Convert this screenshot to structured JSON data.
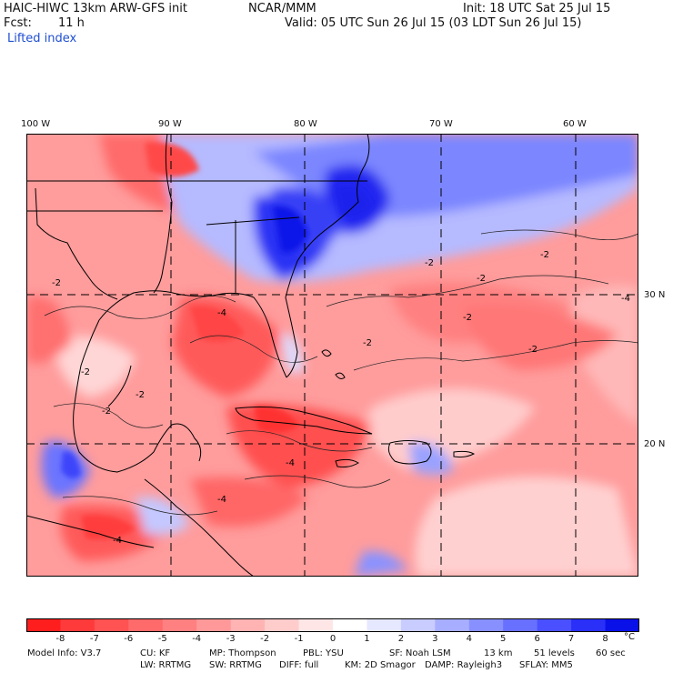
{
  "header": {
    "model": "HAIC-HIWC 13km ARW-GFS init",
    "org": "NCAR/MMM",
    "init": "Init: 18 UTC Sat 25 Jul 15",
    "fcst_label": "Fcst:",
    "fcst_value": "11 h",
    "valid": "Valid: 05 UTC Sun 26 Jul 15 (03 LDT Sun 26 Jul 15)",
    "field": "Lifted index"
  },
  "map": {
    "lon_labels": [
      "100 W",
      "90 W",
      "80 W",
      "70 W",
      "60 W"
    ],
    "lat_labels": [
      "30 N",
      "20 N"
    ],
    "contour_labels": [
      "-2",
      "-2",
      "-2",
      "-2",
      "-4",
      "-2",
      "-4",
      "-2",
      "-4",
      "-2",
      "-4",
      "-2",
      "-4",
      "-2",
      "-2"
    ]
  },
  "colorbar": {
    "labels": [
      "-8",
      "-7",
      "-6",
      "-5",
      "-4",
      "-3",
      "-2",
      "-1",
      "0",
      "1",
      "2",
      "3",
      "4",
      "5",
      "6",
      "7",
      "8"
    ],
    "unit": "°C",
    "colors": [
      "#ff1e1e",
      "#ff3a3a",
      "#ff5252",
      "#ff6a6a",
      "#ff8080",
      "#ff9999",
      "#ffb3b3",
      "#ffcccc",
      "#ffe6e6",
      "#ffffff",
      "#e6e8ff",
      "#c8ccff",
      "#a8aeff",
      "#8890ff",
      "#6870ff",
      "#4a50ff",
      "#2a30f8",
      "#0a10e8"
    ]
  },
  "footer": {
    "line1": [
      "Model Info: V3.7",
      "CU: KF",
      "MP: Thompson",
      "PBL: YSU",
      "SF: Noah LSM",
      "13 km",
      "51 levels",
      "60 sec"
    ],
    "line2": [
      "LW: RRTMG",
      "SW: RRTMG",
      "DIFF: full",
      "KM: 2D Smagor",
      "DAMP: Rayleigh3",
      "SFLAY: MM5"
    ]
  }
}
